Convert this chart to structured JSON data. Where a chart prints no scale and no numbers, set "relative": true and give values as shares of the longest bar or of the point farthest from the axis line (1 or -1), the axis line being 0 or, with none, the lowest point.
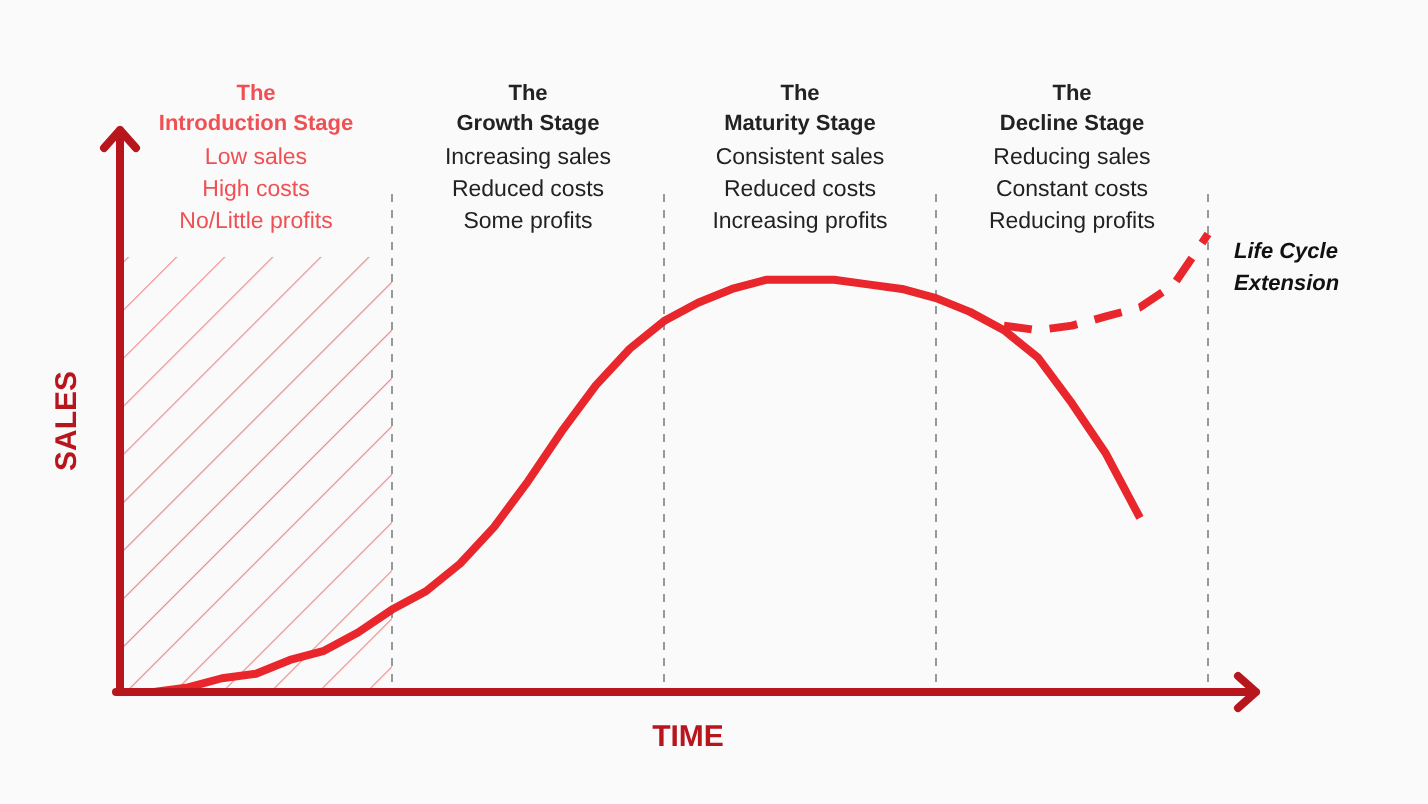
{
  "chart_data": {
    "type": "line",
    "relative": true,
    "xlabel": "TIME",
    "ylabel": "SALES",
    "grid": "x",
    "categories": [
      null,
      null,
      null,
      null,
      null,
      null,
      null,
      null,
      null,
      null,
      null,
      null,
      null,
      null,
      null,
      null,
      null,
      null,
      null,
      null,
      null,
      null,
      null,
      null,
      null,
      null,
      null,
      null,
      null,
      null,
      null,
      null,
      null
    ],
    "series": [
      {
        "color": "#e8262b",
        "values": [
          0,
          0,
          0.01,
          0.03,
          0.04,
          0.07,
          0.09,
          0.13,
          0.18,
          0.22,
          0.28,
          0.36,
          0.46,
          0.57,
          0.67,
          0.75,
          0.81,
          0.85,
          0.88,
          0.9,
          0.9,
          0.9,
          0.89,
          0.88,
          0.86,
          0.83,
          0.79,
          0.73,
          0.63,
          0.52,
          0.38,
          null,
          null
        ]
      },
      {
        "name": "Life Cycle Extension",
        "color": "#e8262b",
        "line_style": "dashed",
        "values": [
          null,
          null,
          null,
          null,
          null,
          null,
          null,
          null,
          null,
          null,
          null,
          null,
          null,
          null,
          null,
          null,
          null,
          null,
          null,
          null,
          null,
          null,
          null,
          null,
          null,
          null,
          0.8,
          0.79,
          0.8,
          0.82,
          0.84,
          0.89,
          1
        ]
      }
    ],
    "annotations": [
      "The\nIntroduction Stage\nLow sales\nHigh costs\nNo/Little profits",
      "The\nGrowth Stage\nIncreasing sales\nReduced costs\nSome profits",
      "The\nMaturity Stage\nConsistent sales\nReduced costs\nIncreasing profits",
      "The\nDecline Stage\nReducing sales\nConstant costs\nReducing profits"
    ]
  }
}
